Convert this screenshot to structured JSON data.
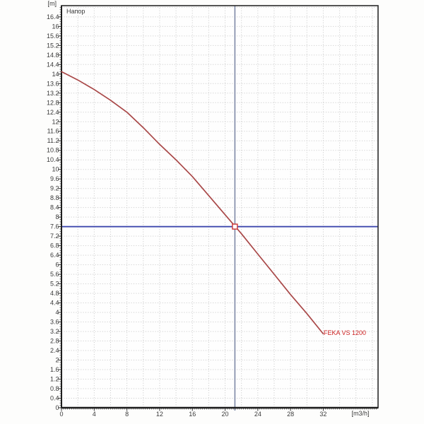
{
  "chart_data": {
    "type": "line",
    "title": "Напор",
    "y_unit_label": "[m]",
    "x_unit_label": "[m3/h]",
    "xlim": [
      0,
      38.7
    ],
    "ylim": [
      0,
      16.87
    ],
    "x_tick_labels": [
      0,
      4,
      8,
      12,
      16,
      20,
      24,
      28,
      32
    ],
    "y_tick_min": 0,
    "y_tick_max": 16.4,
    "y_tick_step": 0.4,
    "grid": {
      "x_step": 2,
      "y_step": 0.4,
      "style": "dotted",
      "color": "#c6c6c6"
    },
    "series": [
      {
        "name": "FEKA VS 1200",
        "color": "#a94848",
        "label_color": "#cc2222",
        "points": [
          [
            0,
            14.1
          ],
          [
            2,
            13.75
          ],
          [
            4,
            13.35
          ],
          [
            6,
            12.9
          ],
          [
            8,
            12.4
          ],
          [
            10,
            11.75
          ],
          [
            12,
            11.05
          ],
          [
            14,
            10.4
          ],
          [
            16,
            9.7
          ],
          [
            18,
            8.9
          ],
          [
            20,
            8.1
          ],
          [
            22,
            7.3
          ],
          [
            24,
            6.45
          ],
          [
            26,
            5.6
          ],
          [
            28,
            4.75
          ],
          [
            30,
            3.95
          ],
          [
            32,
            3.1
          ]
        ]
      }
    ],
    "reference_lines": {
      "horizontal": {
        "value": 7.6,
        "color": "#3f49ae"
      },
      "vertical": {
        "value": 21.2,
        "color": "#7d88a6"
      }
    },
    "operating_point": {
      "x": 21.2,
      "y": 7.6,
      "marker": "open-square",
      "color": "#cc3333",
      "fill": "#ffffff"
    },
    "colors": {
      "axis": "#2a2a2a",
      "tick_text": "#3a3a3a"
    }
  }
}
